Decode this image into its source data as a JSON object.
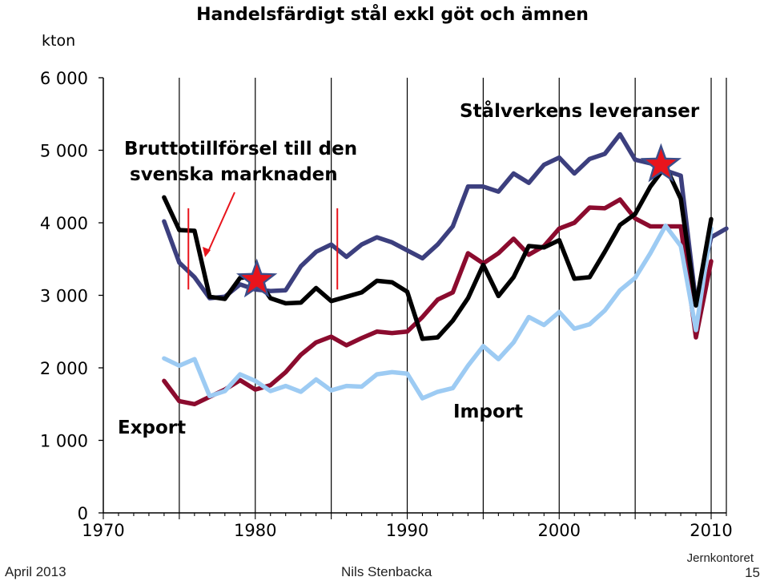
{
  "chart_data": {
    "type": "line",
    "title": "Handelsfärdigt stål exkl göt och ämnen",
    "ylabel": "kton",
    "xlim": [
      1970,
      2011
    ],
    "ylim": [
      0,
      6000
    ],
    "x_ticks": [
      1970,
      1980,
      1990,
      2000,
      2010
    ],
    "y_ticks": [
      0,
      1000,
      2000,
      3000,
      4000,
      5000,
      6000
    ],
    "y_tick_labels": [
      "0",
      "1 000",
      "2 000",
      "3 000",
      "4 000",
      "5 000",
      "6 000"
    ],
    "grid": "vertical",
    "series": [
      {
        "name": "Stålverkens leveranser",
        "color": "#3c3f7e",
        "x": [
          1974,
          1975,
          1976,
          1977,
          1978,
          1979,
          1980,
          1981,
          1982,
          1983,
          1984,
          1985,
          1986,
          1987,
          1988,
          1989,
          1990,
          1991,
          1992,
          1993,
          1994,
          1995,
          1996,
          1997,
          1998,
          1999,
          2000,
          2001,
          2002,
          2003,
          2004,
          2005,
          2006,
          2007,
          2008,
          2009,
          2010,
          2011
        ],
        "values": [
          4020,
          3450,
          3250,
          2960,
          2980,
          3150,
          3080,
          3060,
          3070,
          3400,
          3600,
          3700,
          3530,
          3700,
          3800,
          3730,
          3620,
          3510,
          3700,
          3950,
          4500,
          4500,
          4430,
          4680,
          4550,
          4800,
          4900,
          4680,
          4880,
          4950,
          5220,
          4870,
          4820,
          4720,
          4650,
          2900,
          3800,
          3920
        ]
      },
      {
        "name": "Export",
        "color": "#8b0b2e",
        "x": [
          1974,
          1975,
          1976,
          1977,
          1978,
          1979,
          1980,
          1981,
          1982,
          1983,
          1984,
          1985,
          1986,
          1987,
          1988,
          1989,
          1990,
          1991,
          1992,
          1993,
          1994,
          1995,
          1996,
          1997,
          1998,
          1999,
          2000,
          2001,
          2002,
          2003,
          2004,
          2005,
          2006,
          2007,
          2008,
          2009,
          2010
        ],
        "values": [
          1820,
          1540,
          1500,
          1600,
          1700,
          1830,
          1700,
          1760,
          1940,
          2180,
          2350,
          2430,
          2310,
          2410,
          2500,
          2480,
          2500,
          2700,
          2940,
          3040,
          3580,
          3440,
          3580,
          3780,
          3560,
          3680,
          3920,
          4000,
          4210,
          4200,
          4320,
          4060,
          3950,
          3950,
          3950,
          2420,
          3470
        ]
      },
      {
        "name": "Import",
        "color": "#9dcbf3",
        "x": [
          1974,
          1975,
          1976,
          1977,
          1978,
          1979,
          1980,
          1981,
          1982,
          1983,
          1984,
          1985,
          1986,
          1987,
          1988,
          1989,
          1990,
          1991,
          1992,
          1993,
          1994,
          1995,
          1996,
          1997,
          1998,
          1999,
          2000,
          2001,
          2002,
          2003,
          2004,
          2005,
          2006,
          2007,
          2008,
          2009,
          2010
        ],
        "values": [
          2130,
          2030,
          2120,
          1610,
          1680,
          1910,
          1820,
          1680,
          1750,
          1670,
          1840,
          1690,
          1750,
          1740,
          1910,
          1940,
          1920,
          1580,
          1670,
          1720,
          2030,
          2300,
          2120,
          2350,
          2700,
          2590,
          2770,
          2540,
          2600,
          2790,
          3070,
          3240,
          3580,
          3960,
          3680,
          2520,
          3920
        ]
      },
      {
        "name": "Bruttotillförsel till den svenska marknaden",
        "color": "#000000",
        "x": [
          1974,
          1975,
          1976,
          1977,
          1978,
          1979,
          1980,
          1981,
          1982,
          1983,
          1984,
          1985,
          1986,
          1987,
          1988,
          1989,
          1990,
          1991,
          1992,
          1993,
          1994,
          1995,
          1996,
          1997,
          1998,
          1999,
          2000,
          2001,
          2002,
          2003,
          2004,
          2005,
          2006,
          2007,
          2008,
          2009,
          2010
        ],
        "values": [
          4350,
          3900,
          3890,
          2980,
          2950,
          3240,
          3260,
          2960,
          2890,
          2900,
          3100,
          2920,
          2980,
          3040,
          3200,
          3180,
          3050,
          2400,
          2420,
          2650,
          2960,
          3420,
          2990,
          3250,
          3680,
          3660,
          3760,
          3230,
          3250,
          3600,
          3970,
          4120,
          4500,
          4780,
          4330,
          2860,
          4050
        ]
      }
    ],
    "annotations": {
      "export": "Export",
      "import": "Import",
      "brutto_line1": "Bruttotillförsel till den",
      "brutto_line2": "svenska marknaden",
      "leveranser": "Stålverkens leveranser"
    },
    "markers": [
      {
        "type": "star",
        "color": "#e8141c",
        "x": 1980.1,
        "y": 3210
      },
      {
        "type": "star",
        "color": "#e8141c",
        "x": 2006.7,
        "y": 4800
      }
    ],
    "reference_lines": [
      {
        "color": "#e8141c",
        "x": 1975.6,
        "from": 3080,
        "to": 4200
      },
      {
        "color": "#e8141c",
        "x": 1985.4,
        "from": 3080,
        "to": 4200
      }
    ]
  },
  "footer": {
    "date": "April 2013",
    "author": "Nils Stenbacka",
    "org": "Jernkontoret",
    "page": "15"
  }
}
